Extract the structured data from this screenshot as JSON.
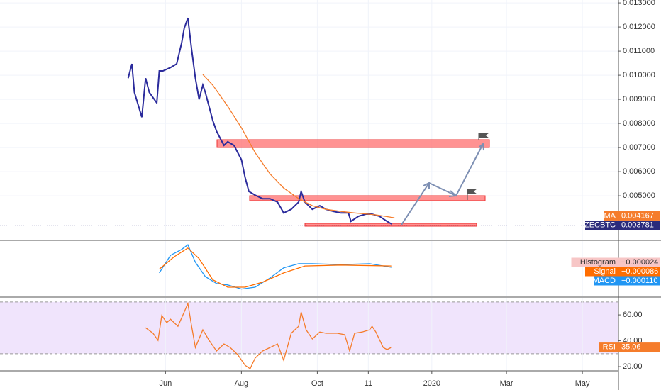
{
  "chart_data": [
    {
      "type": "line",
      "xlim": [
        -133,
        364
      ],
      "ylim": [
        0.00318,
        0.01312
      ],
      "yticks": [
        {
          "value": 0.005,
          "label": "0.005000"
        },
        {
          "value": 0.006,
          "label": "0.006000"
        },
        {
          "value": 0.007,
          "label": "0.007000"
        },
        {
          "value": 0.008,
          "label": "0.008000"
        },
        {
          "value": 0.009,
          "label": "0.009000"
        },
        {
          "value": 0.01,
          "label": "0.010000"
        },
        {
          "value": 0.011,
          "label": "0.011000"
        },
        {
          "value": 0.012,
          "label": "0.012000"
        },
        {
          "value": 0.013,
          "label": "0.013000"
        }
      ],
      "grid": true,
      "series": [
        {
          "name": "ZECBTC",
          "color": "#2b2b9c",
          "x": [
            -30,
            -27,
            -25,
            -19,
            -16,
            -13,
            -7,
            -5,
            -2,
            4,
            9,
            13,
            15,
            18,
            21,
            24,
            27,
            30,
            32,
            38,
            41,
            44,
            47,
            50,
            55,
            61,
            64,
            67,
            72,
            78,
            84,
            90,
            95,
            101,
            107,
            109,
            112,
            118,
            124,
            129,
            135,
            141,
            147,
            149,
            155,
            161,
            166,
            172,
            178,
            182
          ],
          "values": [
            0.00988,
            0.01047,
            0.00929,
            0.00826,
            0.00988,
            0.00929,
            0.00885,
            0.01018,
            0.01018,
            0.01032,
            0.01047,
            0.01135,
            0.01194,
            0.01238,
            0.01106,
            0.00988,
            0.009,
            0.00959,
            0.00929,
            0.00812,
            0.00768,
            0.00738,
            0.00709,
            0.00724,
            0.00709,
            0.0065,
            0.00576,
            0.00518,
            0.00503,
            0.00488,
            0.00488,
            0.00474,
            0.00429,
            0.00444,
            0.00474,
            0.00518,
            0.00474,
            0.00444,
            0.00459,
            0.00444,
            0.00435,
            0.00429,
            0.00429,
            0.00394,
            0.00415,
            0.00424,
            0.00424,
            0.00415,
            0.00394,
            0.00382
          ]
        },
        {
          "name": "MA",
          "color": "#f57c2b",
          "x": [
            30,
            38,
            50,
            61,
            72,
            84,
            95,
            107,
            118,
            129,
            141,
            152,
            169,
            184
          ],
          "values": [
            0.01003,
            0.00959,
            0.00871,
            0.00782,
            0.00679,
            0.00591,
            0.00532,
            0.00488,
            0.00459,
            0.00444,
            0.00435,
            0.00429,
            0.00421,
            0.00409
          ]
        }
      ],
      "annotations": [
        {
          "label": "MA",
          "value": 0.004167,
          "text": "0.004167",
          "color": "#f57c2b"
        },
        {
          "label": "ZECBTC",
          "value": 0.003781,
          "text": "0.003781",
          "color": "#2b2b7c",
          "price_line": true
        }
      ]
    },
    {
      "type": "line",
      "xlim": [
        -133,
        364
      ],
      "ylim": [
        -0.00074,
        0.00046
      ],
      "series": [
        {
          "name": "MACD",
          "color": "#2196f3",
          "x": [
            -5,
            4,
            13,
            18,
            24,
            32,
            41,
            50,
            61,
            72,
            84,
            95,
            107,
            118,
            141,
            164,
            182
          ],
          "values": [
            -0.00023,
            0.00015,
            0.00028,
            0.00038,
            0,
            -0.00031,
            -0.00046,
            -0.00049,
            -0.00058,
            -0.00054,
            -0.00034,
            -0.00012,
            -3e-05,
            -3e-05,
            -5e-05,
            -3e-05,
            -0.00011
          ]
        },
        {
          "name": "Signal",
          "color": "#ff6d00",
          "x": [
            -5,
            7,
            18,
            27,
            38,
            50,
            64,
            78,
            95,
            112,
            141,
            182
          ],
          "values": [
            -0.00015,
            0.00012,
            0.00031,
            8e-05,
            -0.00038,
            -0.00054,
            -0.00054,
            -0.00043,
            -0.00023,
            -8e-05,
            -6e-05,
            -8e-05
          ]
        }
      ],
      "annotations": [
        {
          "label": "Histogram",
          "text": "−0.000024",
          "color": "#f7c6c6",
          "textcolor": "#333333"
        },
        {
          "label": "Signal",
          "text": "−0.000086",
          "color": "#ff6d00",
          "textcolor": "#ffffff"
        },
        {
          "label": "MACD",
          "text": "−0.000110",
          "color": "#2196f3",
          "textcolor": "#ffffff"
        }
      ]
    },
    {
      "type": "line",
      "xlim": [
        -133,
        364
      ],
      "ylim": [
        17.3,
        73.2
      ],
      "yticks": [
        {
          "value": 20,
          "label": "20.00"
        },
        {
          "value": 40,
          "label": "40.00"
        },
        {
          "value": 60,
          "label": "60.00"
        }
      ],
      "band": [
        30,
        70
      ],
      "xticks": [
        {
          "value": 0,
          "label": "Jun"
        },
        {
          "value": 61,
          "label": "Aug"
        },
        {
          "value": 122,
          "label": "Oct"
        },
        {
          "value": 163,
          "label": "11"
        },
        {
          "value": 214,
          "label": "2020"
        },
        {
          "value": 274,
          "label": "Mar"
        },
        {
          "value": 335,
          "label": "May"
        }
      ],
      "series": [
        {
          "name": "RSI",
          "color": "#f57c2b",
          "x": [
            -16,
            -10,
            -6,
            -3,
            1,
            4,
            10,
            15,
            18,
            21,
            24,
            30,
            35,
            41,
            47,
            52,
            58,
            64,
            68,
            72,
            78,
            84,
            90,
            95,
            101,
            107,
            109,
            113,
            118,
            124,
            129,
            138,
            144,
            148,
            152,
            158,
            164,
            166,
            169,
            175,
            178,
            182
          ],
          "values": [
            50.1,
            45.8,
            40.3,
            59.5,
            54.0,
            56.7,
            51.2,
            62.2,
            68.8,
            51.2,
            34.8,
            48.5,
            40.3,
            32.1,
            37.5,
            34.8,
            29.3,
            21.1,
            18.4,
            26.6,
            32.1,
            34.8,
            37.5,
            24.9,
            45.8,
            51.2,
            62.2,
            48.5,
            41.4,
            46.8,
            45.8,
            45.8,
            44.7,
            32.1,
            45.8,
            46.8,
            48.5,
            51.2,
            46.8,
            34.8,
            33.2,
            35.1
          ]
        }
      ],
      "annotations": [
        {
          "label": "RSI",
          "value": 35.06,
          "text": "35.06",
          "color": "#f57c2b"
        }
      ]
    }
  ]
}
